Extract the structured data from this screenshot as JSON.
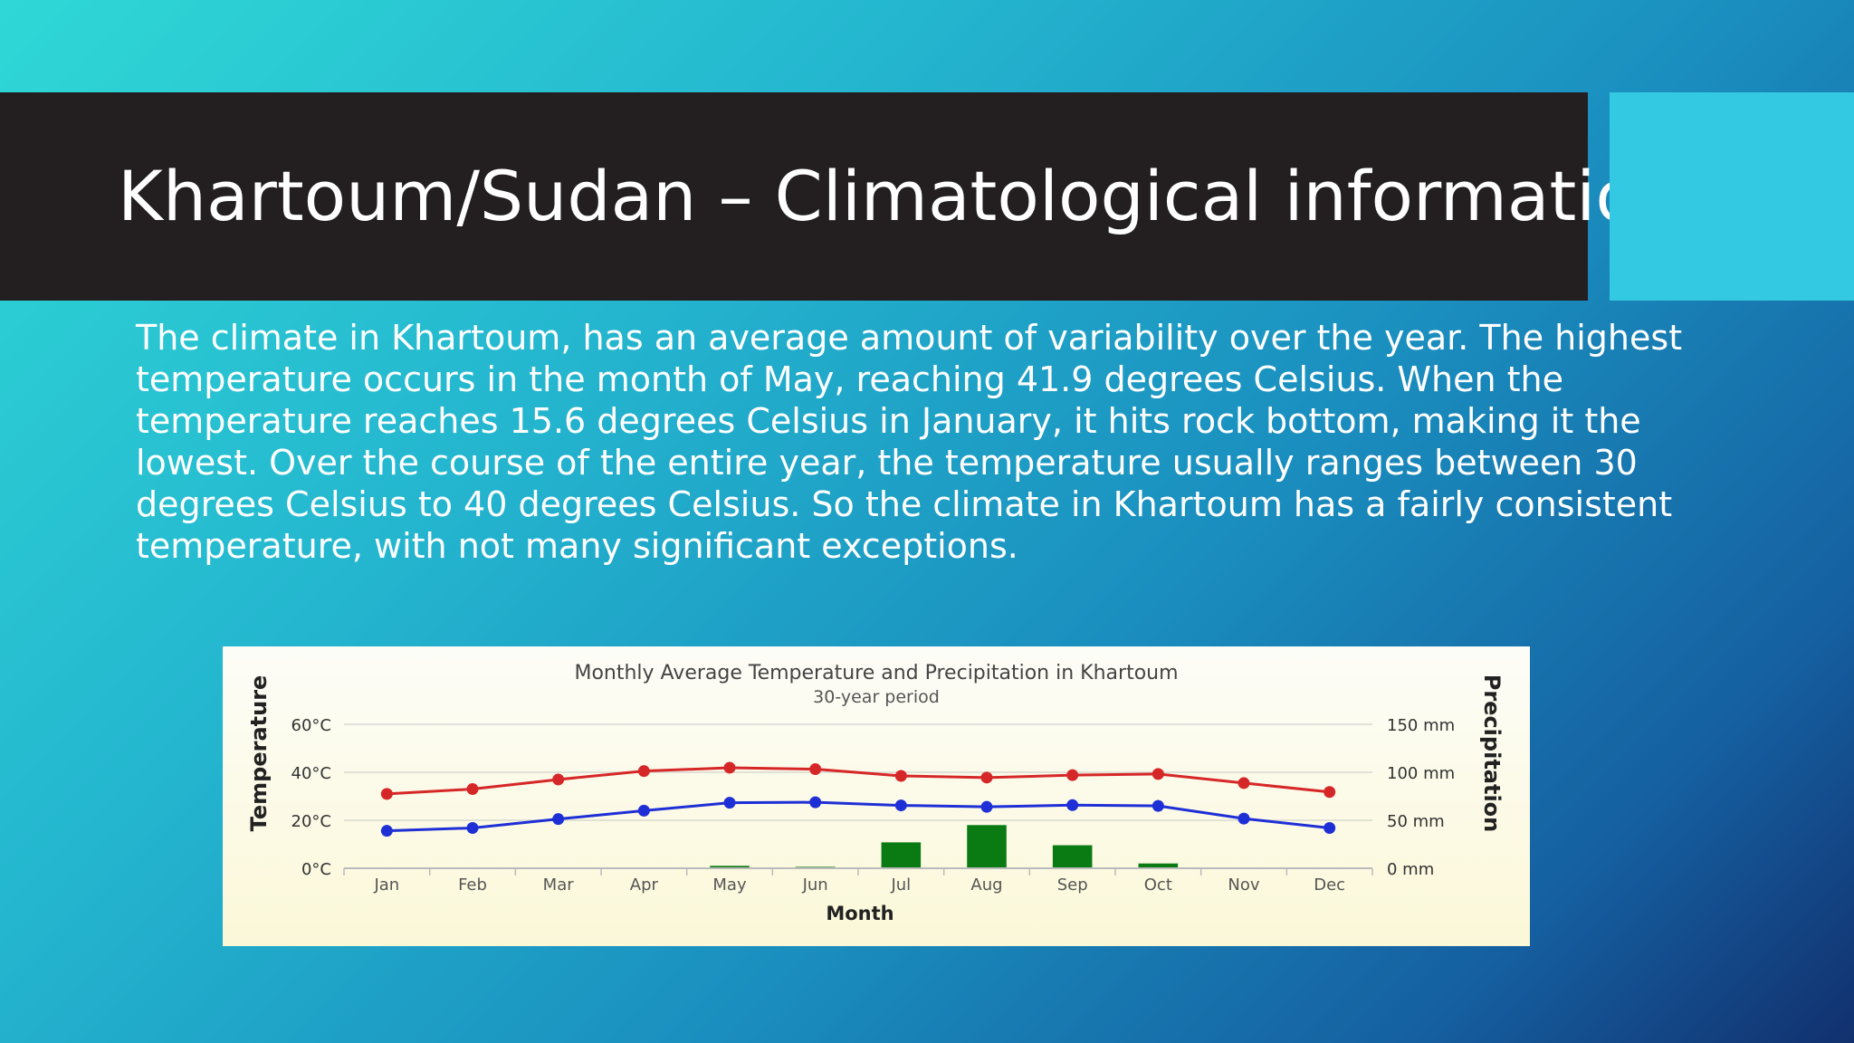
{
  "slide": {
    "title": "Khartoum/Sudan – Climatological information",
    "body": "The climate in Khartoum, has an average amount of variability over the year. The highest temperature occurs in the month of May, reaching 41.9 degrees Celsius. When the temperature reaches 15.6 degrees Celsius in January, it hits rock bottom, making it the lowest. Over the course of the entire year, the temperature usually ranges between 30 degrees Celsius to 40 degrees Celsius. So the climate in Khartoum has a fairly consistent temperature, with not many significant exceptions."
  },
  "colors": {
    "high": "#d62728",
    "low": "#1f2fd6",
    "precip": "#0a7a12",
    "title_bar": "#231f20",
    "accent": "#33c9e2"
  },
  "chart_data": {
    "type": "line",
    "title": "Monthly Average Temperature and Precipitation in Khartoum",
    "subtitle": "30-year period",
    "xlabel": "Month",
    "ylabel": "Temperature",
    "y2label": "Precipitation",
    "categories": [
      "Jan",
      "Feb",
      "Mar",
      "Apr",
      "May",
      "Jun",
      "Jul",
      "Aug",
      "Sep",
      "Oct",
      "Nov",
      "Dec"
    ],
    "ylim": [
      0,
      60
    ],
    "y2lim": [
      0,
      150
    ],
    "yticks": [
      "0°C",
      "20°C",
      "40°C",
      "60°C"
    ],
    "y2ticks": [
      "0 mm",
      "50 mm",
      "100 mm",
      "150 mm"
    ],
    "series": [
      {
        "type": "line",
        "axis": "left",
        "values": [
          31,
          33,
          37,
          40.5,
          41.9,
          41.3,
          38.5,
          37.8,
          38.8,
          39.3,
          35.5,
          31.8
        ]
      },
      {
        "type": "line",
        "axis": "left",
        "values": [
          15.6,
          16.8,
          20.5,
          24,
          27.3,
          27.5,
          26.2,
          25.6,
          26.3,
          26,
          20.7,
          16.8
        ]
      },
      {
        "type": "bar",
        "axis": "right",
        "values": [
          0,
          0,
          0,
          0,
          2.5,
          1.5,
          27,
          45,
          24,
          5,
          0,
          0
        ]
      }
    ],
    "grid": true
  }
}
